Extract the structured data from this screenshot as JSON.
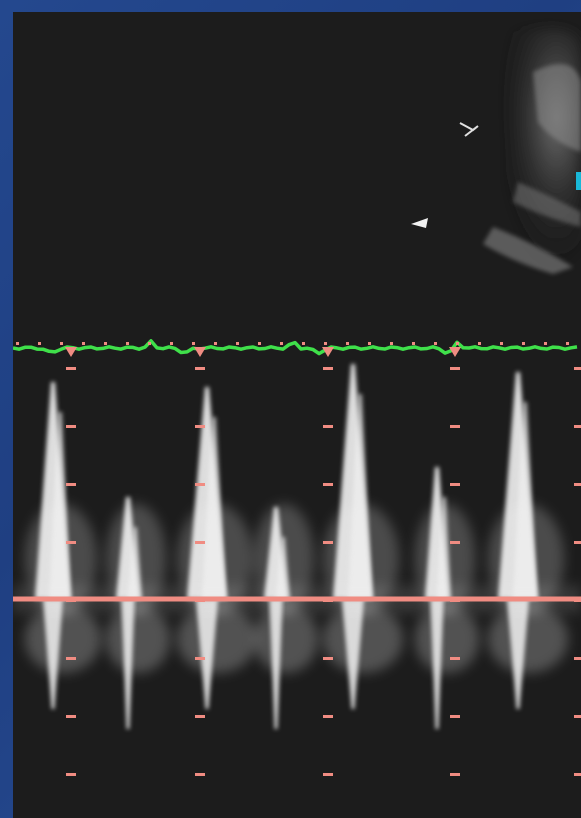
{
  "image": {
    "type": "ultrasound-doppler-echocardiogram",
    "views": [
      "2d-sector-image",
      "doppler-spectral-trace"
    ]
  },
  "colors": {
    "background_border": "#2a4a8c",
    "screen": "#1c1c1c",
    "ecg_trace": "#3fe04a",
    "baseline": "#f08c82",
    "markers": "#f08c82",
    "doppler_signal": "#f2f2f2",
    "color_bar": "#19b8d8"
  },
  "doppler": {
    "beats": 5,
    "baseline_color": "#f08c82"
  }
}
